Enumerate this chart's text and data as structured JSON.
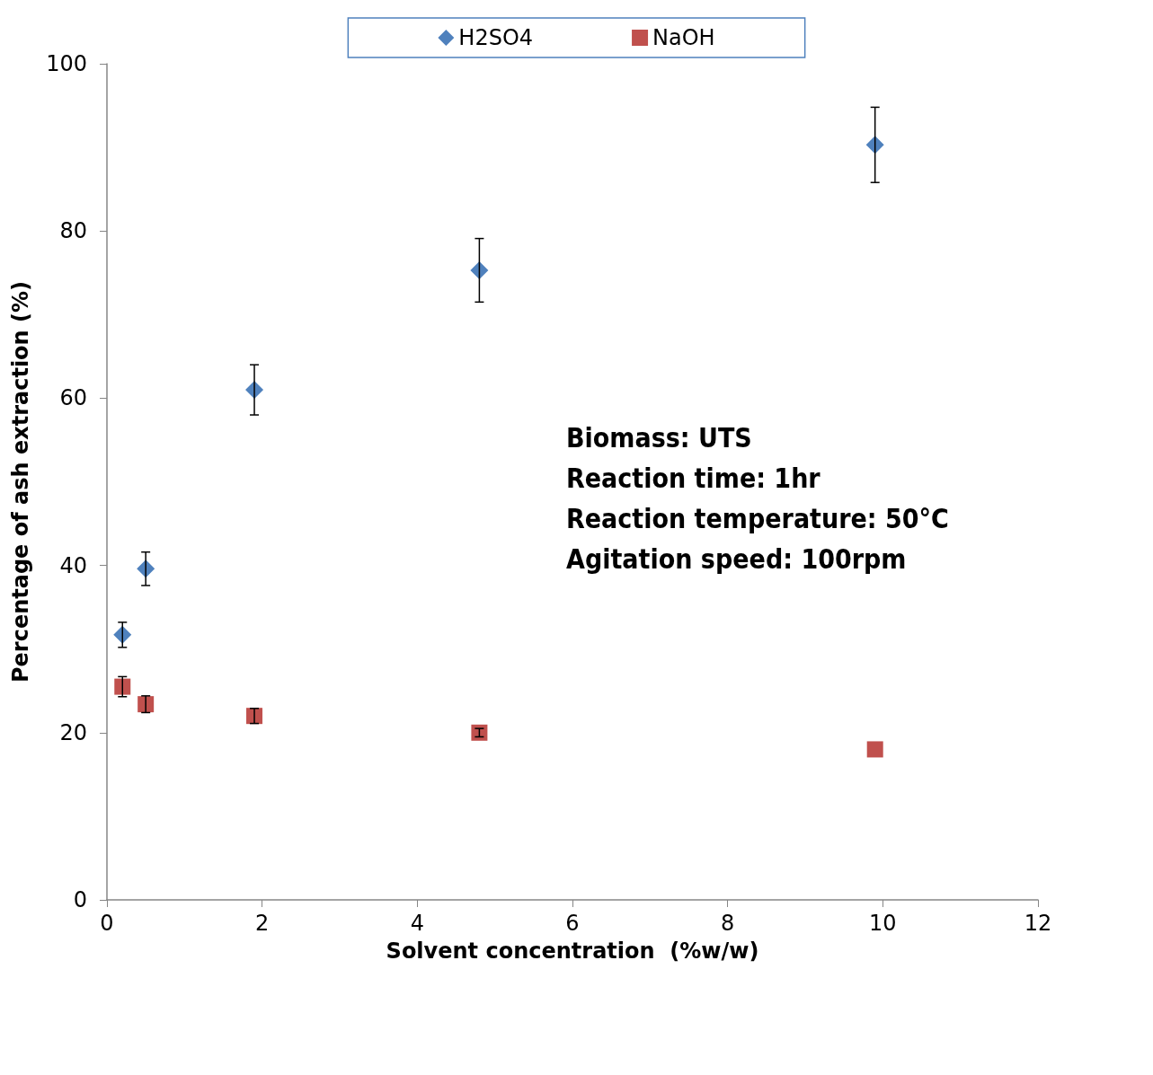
{
  "chart_data": {
    "type": "scatter",
    "xlabel": "Solvent concentration  (%w/w)",
    "ylabel": "Percentage of ash extraction (%)",
    "x": [
      0.2,
      0.5,
      1.9,
      4.8,
      9.9
    ],
    "series": [
      {
        "name": "H2SO4",
        "color": "#4f81bd",
        "marker": "diamond",
        "values": [
          31.7,
          39.6,
          61.0,
          75.3,
          90.3
        ],
        "errors": [
          1.5,
          2,
          3,
          3.8,
          4.5
        ]
      },
      {
        "name": "NaOH",
        "color": "#c0504d",
        "marker": "square",
        "values": [
          25.5,
          23.4,
          22.0,
          20.0,
          18.0
        ],
        "errors": [
          1.2,
          1,
          0.9,
          0.5,
          null
        ]
      }
    ],
    "xlim": [
      0,
      12
    ],
    "xticks": [
      0,
      2,
      4,
      6,
      8,
      10,
      12
    ],
    "ylim": [
      0,
      100
    ],
    "yticks": [
      0,
      20,
      40,
      60,
      80,
      100
    ],
    "grid": false,
    "legend": "top",
    "annotations": [
      "Biomass: UTS",
      "Reaction time: 1hr",
      "Reaction temperature: 50°C",
      "Agitation speed: 100rpm"
    ]
  }
}
